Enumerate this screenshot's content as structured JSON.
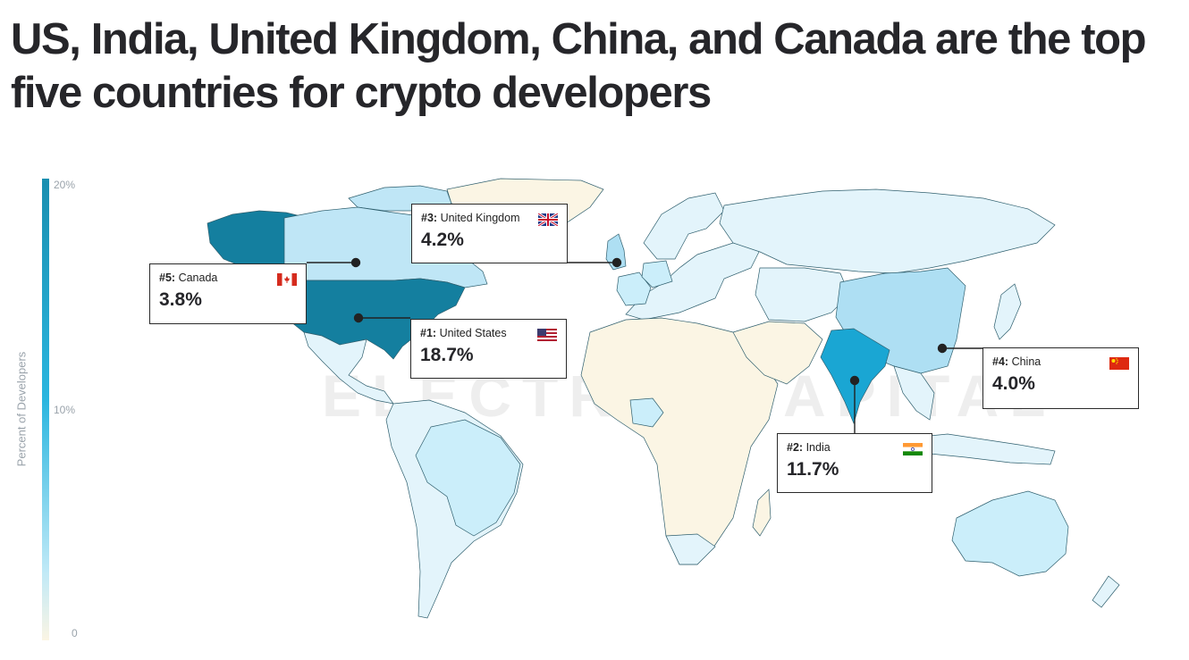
{
  "title": "US, India, United Kingdom, China, and Canada are the top five countries for crypto developers",
  "legend": {
    "label": "Percent of Developers",
    "ticks": [
      "20%",
      "10%",
      "0"
    ],
    "colors": [
      "#1a8fb0",
      "#2bb6df",
      "#bfe9f7",
      "#fbf5e4"
    ]
  },
  "watermark": "ELECTRIC CAPITAL",
  "countries": [
    {
      "rank": "#1:",
      "name": "United States",
      "value": "18.7%",
      "flag": "us-flag"
    },
    {
      "rank": "#2:",
      "name": "India",
      "value": "11.7%",
      "flag": "india-flag"
    },
    {
      "rank": "#3:",
      "name": "United Kingdom",
      "value": "4.2%",
      "flag": "uk-flag"
    },
    {
      "rank": "#4:",
      "name": "China",
      "value": "4.0%",
      "flag": "china-flag"
    },
    {
      "rank": "#5:",
      "name": "Canada",
      "value": "3.8%",
      "flag": "canada-flag"
    }
  ],
  "colors": {
    "us": "#147f9f",
    "alaska": "#147f9f",
    "india": "#1aa6d3",
    "canada": "#bfe6f6",
    "china": "#aedff3",
    "light": "#e3f4fb",
    "pale": "#fbf5e4",
    "border": "#2f5f6e"
  }
}
